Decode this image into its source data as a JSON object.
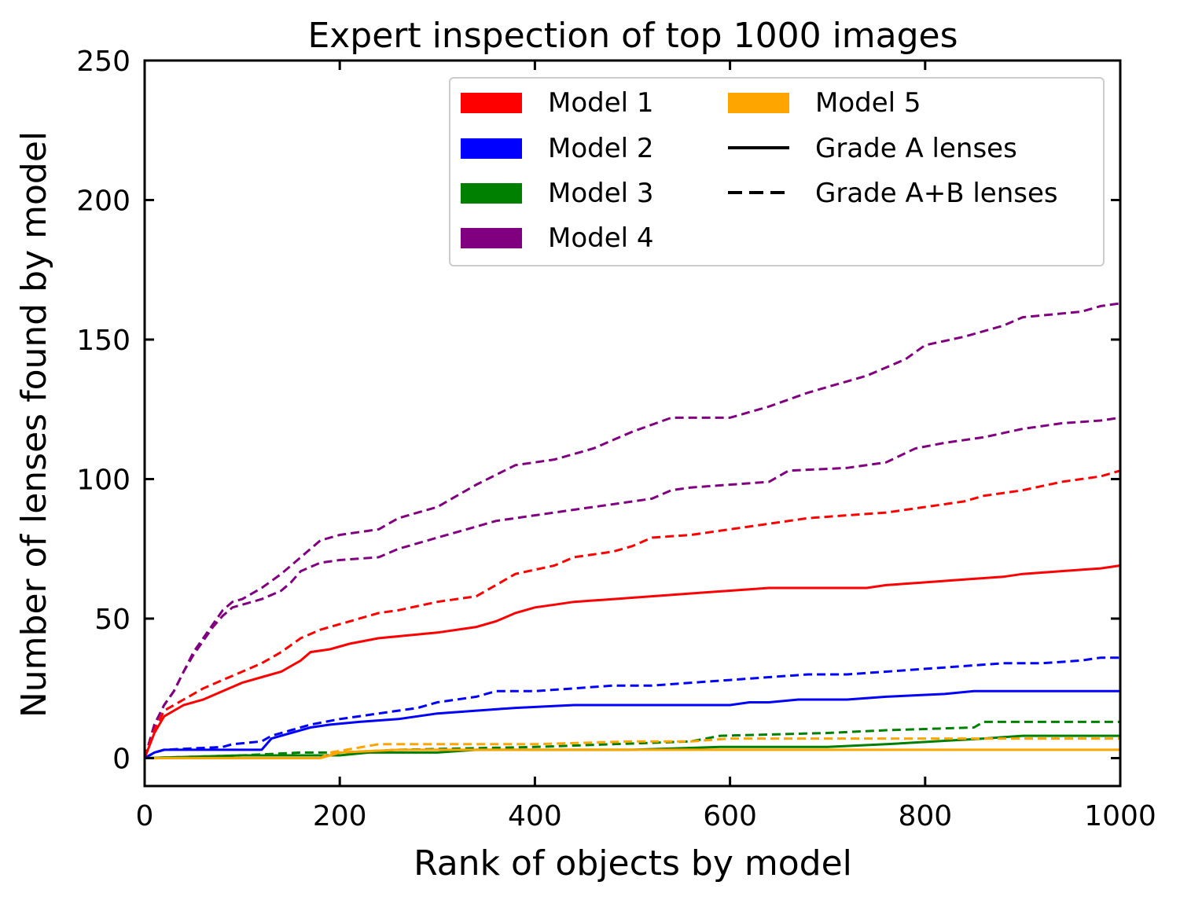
{
  "chart_data": {
    "type": "line",
    "title": "Expert inspection of top 1000 images",
    "xlabel": "Rank of objects by model",
    "ylabel": "Number of lenses found by model",
    "xlim": [
      0,
      1000
    ],
    "ylim": [
      -10,
      250
    ],
    "xticks": [
      0,
      200,
      400,
      600,
      800,
      1000
    ],
    "yticks": [
      0,
      50,
      100,
      150,
      200,
      250
    ],
    "grid": false,
    "legend": {
      "placement": "top-right",
      "columns": 2,
      "entries": [
        {
          "label": "Model 1",
          "color": "#ff0000",
          "style": "patch"
        },
        {
          "label": "Model 2",
          "color": "#0000ff",
          "style": "patch"
        },
        {
          "label": "Model 3",
          "color": "#008000",
          "style": "patch"
        },
        {
          "label": "Model 4",
          "color": "#800080",
          "style": "patch"
        },
        {
          "label": "Model 5",
          "color": "#ffa500",
          "style": "patch"
        },
        {
          "label": "Grade A lenses",
          "color": "#000000",
          "style": "solid"
        },
        {
          "label": "Grade A+B lenses",
          "color": "#000000",
          "style": "dashed"
        }
      ]
    },
    "series": [
      {
        "model": "Model 4",
        "grade": "A+B",
        "color": "#800080",
        "dash": true,
        "points": [
          [
            0,
            0
          ],
          [
            10,
            12
          ],
          [
            20,
            19
          ],
          [
            30,
            24
          ],
          [
            40,
            31
          ],
          [
            50,
            38
          ],
          [
            60,
            43
          ],
          [
            70,
            48
          ],
          [
            80,
            53
          ],
          [
            90,
            56
          ],
          [
            100,
            57
          ],
          [
            120,
            61
          ],
          [
            140,
            66
          ],
          [
            160,
            72
          ],
          [
            180,
            78
          ],
          [
            200,
            80
          ],
          [
            240,
            82
          ],
          [
            260,
            86
          ],
          [
            300,
            90
          ],
          [
            340,
            98
          ],
          [
            380,
            105
          ],
          [
            420,
            107
          ],
          [
            460,
            111
          ],
          [
            500,
            117
          ],
          [
            540,
            122
          ],
          [
            600,
            122
          ],
          [
            640,
            126
          ],
          [
            680,
            131
          ],
          [
            700,
            133
          ],
          [
            740,
            137
          ],
          [
            780,
            143
          ],
          [
            800,
            148
          ],
          [
            840,
            151
          ],
          [
            880,
            155
          ],
          [
            900,
            158
          ],
          [
            960,
            160
          ],
          [
            980,
            162
          ],
          [
            1000,
            163
          ]
        ]
      },
      {
        "model": "Model 4",
        "grade": "A",
        "color": "#800080",
        "dash": true,
        "points": [
          [
            0,
            0
          ],
          [
            10,
            12
          ],
          [
            20,
            19
          ],
          [
            30,
            24
          ],
          [
            40,
            31
          ],
          [
            50,
            37
          ],
          [
            60,
            42
          ],
          [
            70,
            47
          ],
          [
            80,
            51
          ],
          [
            90,
            54
          ],
          [
            100,
            55
          ],
          [
            120,
            57
          ],
          [
            140,
            60
          ],
          [
            150,
            63
          ],
          [
            160,
            67
          ],
          [
            180,
            70
          ],
          [
            200,
            71
          ],
          [
            240,
            72
          ],
          [
            260,
            75
          ],
          [
            300,
            79
          ],
          [
            340,
            83
          ],
          [
            360,
            85
          ],
          [
            400,
            87
          ],
          [
            440,
            89
          ],
          [
            480,
            91
          ],
          [
            520,
            93
          ],
          [
            540,
            96
          ],
          [
            560,
            97
          ],
          [
            640,
            99
          ],
          [
            660,
            103
          ],
          [
            720,
            104
          ],
          [
            760,
            106
          ],
          [
            790,
            111
          ],
          [
            820,
            113
          ],
          [
            860,
            115
          ],
          [
            900,
            118
          ],
          [
            940,
            120
          ],
          [
            980,
            121
          ],
          [
            1000,
            122
          ]
        ]
      },
      {
        "model": "Model 1",
        "grade": "A+B",
        "color": "#ff0000",
        "dash": true,
        "points": [
          [
            0,
            0
          ],
          [
            10,
            10
          ],
          [
            20,
            17
          ],
          [
            40,
            21
          ],
          [
            60,
            25
          ],
          [
            80,
            28
          ],
          [
            100,
            31
          ],
          [
            120,
            34
          ],
          [
            140,
            38
          ],
          [
            160,
            43
          ],
          [
            180,
            46
          ],
          [
            200,
            48
          ],
          [
            240,
            52
          ],
          [
            260,
            53
          ],
          [
            300,
            56
          ],
          [
            340,
            58
          ],
          [
            360,
            62
          ],
          [
            380,
            66
          ],
          [
            420,
            69
          ],
          [
            440,
            72
          ],
          [
            480,
            74
          ],
          [
            500,
            76
          ],
          [
            520,
            79
          ],
          [
            560,
            80
          ],
          [
            600,
            82
          ],
          [
            640,
            84
          ],
          [
            680,
            86
          ],
          [
            720,
            87
          ],
          [
            760,
            88
          ],
          [
            800,
            90
          ],
          [
            840,
            92
          ],
          [
            860,
            94
          ],
          [
            900,
            96
          ],
          [
            940,
            99
          ],
          [
            980,
            101
          ],
          [
            1000,
            103
          ]
        ]
      },
      {
        "model": "Model 1",
        "grade": "A",
        "color": "#ff0000",
        "dash": false,
        "points": [
          [
            0,
            0
          ],
          [
            10,
            9
          ],
          [
            20,
            15
          ],
          [
            40,
            19
          ],
          [
            60,
            21
          ],
          [
            80,
            24
          ],
          [
            100,
            27
          ],
          [
            120,
            29
          ],
          [
            140,
            31
          ],
          [
            160,
            35
          ],
          [
            170,
            38
          ],
          [
            190,
            39
          ],
          [
            210,
            41
          ],
          [
            240,
            43
          ],
          [
            300,
            45
          ],
          [
            340,
            47
          ],
          [
            360,
            49
          ],
          [
            380,
            52
          ],
          [
            400,
            54
          ],
          [
            420,
            55
          ],
          [
            440,
            56
          ],
          [
            480,
            57
          ],
          [
            520,
            58
          ],
          [
            560,
            59
          ],
          [
            600,
            60
          ],
          [
            640,
            61
          ],
          [
            740,
            61
          ],
          [
            760,
            62
          ],
          [
            800,
            63
          ],
          [
            840,
            64
          ],
          [
            880,
            65
          ],
          [
            900,
            66
          ],
          [
            940,
            67
          ],
          [
            980,
            68
          ],
          [
            1000,
            69
          ]
        ]
      },
      {
        "model": "Model 2",
        "grade": "A+B",
        "color": "#0000ff",
        "dash": true,
        "points": [
          [
            0,
            0
          ],
          [
            10,
            2
          ],
          [
            20,
            3
          ],
          [
            80,
            4
          ],
          [
            90,
            5
          ],
          [
            120,
            6
          ],
          [
            130,
            8
          ],
          [
            150,
            10
          ],
          [
            170,
            12
          ],
          [
            200,
            14
          ],
          [
            240,
            16
          ],
          [
            280,
            18
          ],
          [
            300,
            20
          ],
          [
            340,
            22
          ],
          [
            360,
            24
          ],
          [
            400,
            24
          ],
          [
            440,
            25
          ],
          [
            480,
            26
          ],
          [
            520,
            26
          ],
          [
            560,
            27
          ],
          [
            600,
            28
          ],
          [
            640,
            29
          ],
          [
            680,
            30
          ],
          [
            720,
            30
          ],
          [
            760,
            31
          ],
          [
            800,
            32
          ],
          [
            840,
            33
          ],
          [
            880,
            34
          ],
          [
            920,
            34
          ],
          [
            960,
            35
          ],
          [
            980,
            36
          ],
          [
            1000,
            36
          ]
        ]
      },
      {
        "model": "Model 2",
        "grade": "A",
        "color": "#0000ff",
        "dash": false,
        "points": [
          [
            0,
            0
          ],
          [
            10,
            2
          ],
          [
            20,
            3
          ],
          [
            120,
            3
          ],
          [
            130,
            7
          ],
          [
            150,
            9
          ],
          [
            170,
            11
          ],
          [
            190,
            12
          ],
          [
            220,
            13
          ],
          [
            260,
            14
          ],
          [
            300,
            16
          ],
          [
            340,
            17
          ],
          [
            380,
            18
          ],
          [
            440,
            19
          ],
          [
            600,
            19
          ],
          [
            620,
            20
          ],
          [
            640,
            20
          ],
          [
            670,
            21
          ],
          [
            720,
            21
          ],
          [
            760,
            22
          ],
          [
            820,
            23
          ],
          [
            850,
            24
          ],
          [
            1000,
            24
          ]
        ]
      },
      {
        "model": "Model 3",
        "grade": "A+B",
        "color": "#008000",
        "dash": true,
        "points": [
          [
            0,
            0
          ],
          [
            100,
            1
          ],
          [
            160,
            2
          ],
          [
            200,
            2
          ],
          [
            260,
            3
          ],
          [
            400,
            4
          ],
          [
            480,
            5
          ],
          [
            560,
            6
          ],
          [
            590,
            8
          ],
          [
            700,
            9
          ],
          [
            760,
            10
          ],
          [
            850,
            11
          ],
          [
            860,
            13
          ],
          [
            1000,
            13
          ]
        ]
      },
      {
        "model": "Model 3",
        "grade": "A",
        "color": "#008000",
        "dash": false,
        "points": [
          [
            0,
            0
          ],
          [
            100,
            1
          ],
          [
            200,
            1
          ],
          [
            230,
            2
          ],
          [
            300,
            2
          ],
          [
            340,
            3
          ],
          [
            500,
            3
          ],
          [
            590,
            4
          ],
          [
            700,
            4
          ],
          [
            760,
            5
          ],
          [
            860,
            7
          ],
          [
            900,
            8
          ],
          [
            1000,
            8
          ]
        ]
      },
      {
        "model": "Model 5",
        "grade": "A+B",
        "color": "#ffa500",
        "dash": true,
        "points": [
          [
            0,
            0
          ],
          [
            180,
            0
          ],
          [
            190,
            2
          ],
          [
            240,
            5
          ],
          [
            300,
            5
          ],
          [
            400,
            5
          ],
          [
            500,
            6
          ],
          [
            560,
            6
          ],
          [
            600,
            7
          ],
          [
            700,
            7
          ],
          [
            800,
            7
          ],
          [
            900,
            7
          ],
          [
            1000,
            7
          ]
        ]
      },
      {
        "model": "Model 5",
        "grade": "A",
        "color": "#ffa500",
        "dash": false,
        "points": [
          [
            0,
            0
          ],
          [
            180,
            0
          ],
          [
            190,
            1
          ],
          [
            200,
            2
          ],
          [
            260,
            3
          ],
          [
            1000,
            3
          ]
        ]
      }
    ]
  }
}
